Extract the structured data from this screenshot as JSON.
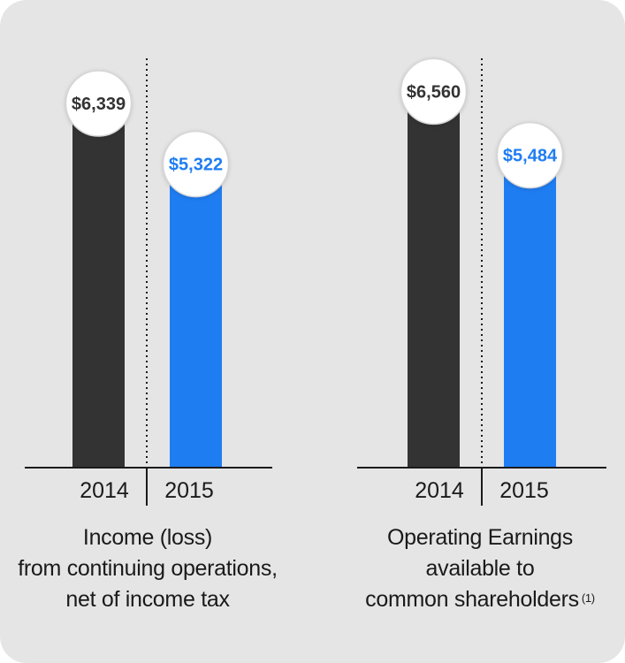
{
  "colors": {
    "bar_2014": "#333333",
    "bar_2015": "#1f7df2",
    "label_2014": "#333333",
    "label_2015": "#1f7df2",
    "background": "#e5e5e5"
  },
  "chart_data": [
    {
      "type": "bar",
      "categories": [
        "2014",
        "2015"
      ],
      "values": [
        6339,
        5322
      ],
      "value_labels": [
        "$6,339",
        "$5,322"
      ],
      "ylim": [
        0,
        7500
      ],
      "caption_lines": [
        "Income (loss)",
        "from continuing operations,",
        "net of income tax"
      ],
      "footnote": ""
    },
    {
      "type": "bar",
      "categories": [
        "2014",
        "2015"
      ],
      "values": [
        6560,
        5484
      ],
      "value_labels": [
        "$6,560",
        "$5,484"
      ],
      "ylim": [
        0,
        7500
      ],
      "caption_lines": [
        "Operating Earnings",
        "available to",
        "common shareholders"
      ],
      "footnote": "(1)"
    }
  ]
}
